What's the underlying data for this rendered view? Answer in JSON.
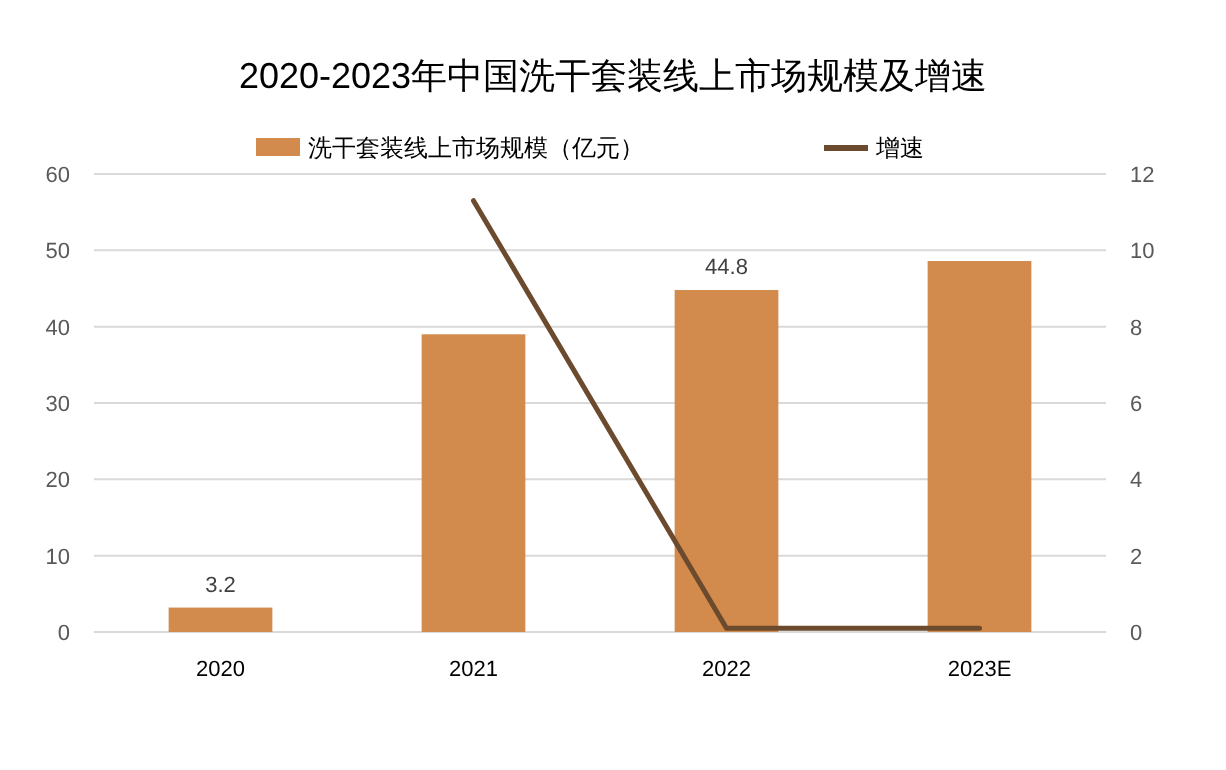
{
  "chart_data": {
    "type": "bar",
    "title": "2020-2023年中国洗干套装线上市场规模及增速",
    "categories": [
      "2020",
      "2021",
      "2022",
      "2023E"
    ],
    "series": [
      {
        "name": "洗干套装线上市场规模（亿元）",
        "color": "#d38b4d",
        "values": [
          3.2,
          39,
          44.8,
          48.6
        ],
        "value_labels": [
          "3.2",
          null,
          "44.8",
          null
        ]
      },
      {
        "name": "增速",
        "type": "line",
        "axis": "y2",
        "color": "#6b4a2e",
        "values": [
          null,
          11.3,
          0.1,
          0.1
        ]
      }
    ],
    "ylim": [
      0,
      60
    ],
    "yticks": [
      0,
      10,
      20,
      30,
      40,
      50,
      60
    ],
    "y2lim": [
      0,
      12
    ],
    "y2ticks": [
      0,
      2,
      4,
      6,
      8,
      10,
      12
    ],
    "grid": "y",
    "legend": "top",
    "marker": "none",
    "line_style": "solid"
  }
}
